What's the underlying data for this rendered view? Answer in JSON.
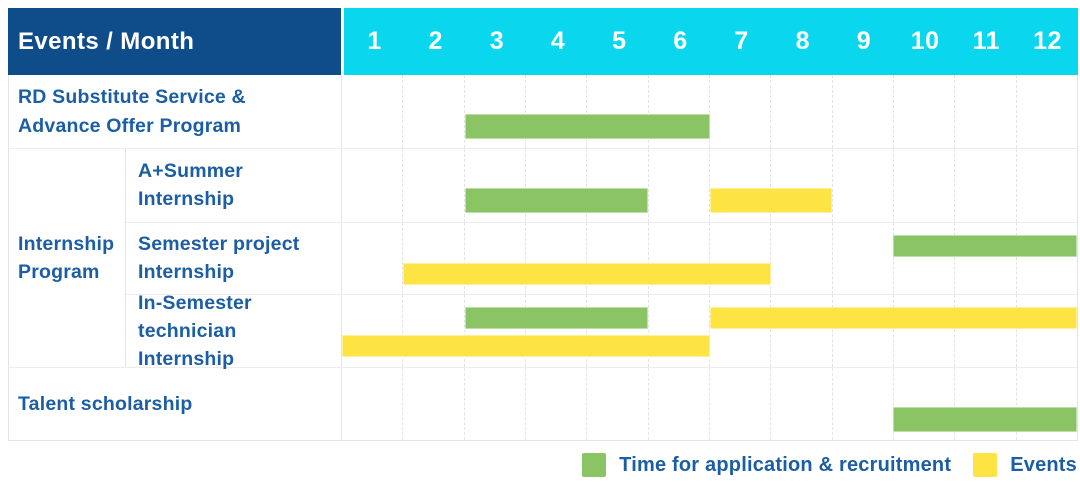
{
  "header": {
    "title": "Events / Month",
    "months": [
      "1",
      "2",
      "3",
      "4",
      "5",
      "6",
      "7",
      "8",
      "9",
      "10",
      "11",
      "12"
    ]
  },
  "group": {
    "label": "Internship Program"
  },
  "legend": [
    {
      "series": "Time for application & recruitment",
      "label": "Time for application & recruitment",
      "color": "#8ac464"
    },
    {
      "series": "Events",
      "label": "Events",
      "color": "#fde343"
    }
  ],
  "colors": {
    "header_bg": "#0e4c8a",
    "months_bg": "#0ad6ee",
    "label_text": "#1b5ea4",
    "application": "#8ac464",
    "events": "#fde343"
  },
  "chart_data": {
    "type": "bar",
    "subtype": "gantt-timeline",
    "title": "Events / Month",
    "xlabel": "Month",
    "x_ticks": [
      1,
      2,
      3,
      4,
      5,
      6,
      7,
      8,
      9,
      10,
      11,
      12
    ],
    "x_range": [
      1,
      12
    ],
    "grid": "vertical-dashed",
    "legend_position": "bottom-right",
    "series_names": [
      "Time for application & recruitment",
      "Events"
    ],
    "rows": [
      {
        "category": "RD Substitute Service & Advance Offer Program",
        "group": null,
        "segments": [
          {
            "series": "Time for application & recruitment",
            "start_month": 3,
            "end_month": 6,
            "track": 0
          }
        ]
      },
      {
        "category": "A+Summer Internship",
        "group": "Internship Program",
        "segments": [
          {
            "series": "Time for application & recruitment",
            "start_month": 3,
            "end_month": 5,
            "track": 0
          },
          {
            "series": "Events",
            "start_month": 7,
            "end_month": 8,
            "track": 0
          }
        ]
      },
      {
        "category": "Semester project Internship",
        "group": "Internship Program",
        "segments": [
          {
            "series": "Time for application & recruitment",
            "start_month": 10,
            "end_month": 12,
            "track": 0
          },
          {
            "series": "Events",
            "start_month": 2,
            "end_month": 7,
            "track": 1
          }
        ]
      },
      {
        "category": "In-Semester technician Internship",
        "group": "Internship Program",
        "segments": [
          {
            "series": "Time for application & recruitment",
            "start_month": 3,
            "end_month": 5,
            "track": 0
          },
          {
            "series": "Events",
            "start_month": 7,
            "end_month": 12,
            "track": 0
          },
          {
            "series": "Events",
            "start_month": 1,
            "end_month": 6,
            "track": 1
          }
        ]
      },
      {
        "category": "Talent scholarship",
        "group": null,
        "segments": [
          {
            "series": "Time for application & recruitment",
            "start_month": 10,
            "end_month": 12,
            "track": 0
          }
        ]
      }
    ]
  }
}
